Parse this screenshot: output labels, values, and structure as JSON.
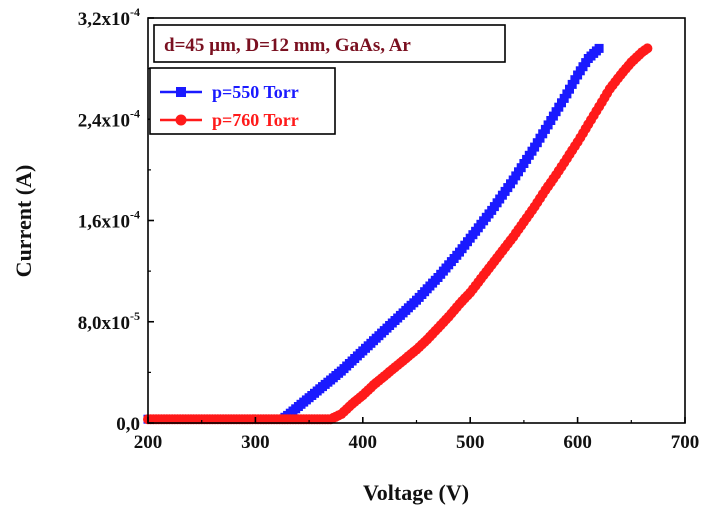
{
  "chart_data": {
    "type": "line",
    "annotation": "d=45 µm, D=12 mm, GaAs, Ar",
    "xlabel": "Voltage (V)",
    "ylabel": "Current (A)",
    "xlim": [
      200,
      700
    ],
    "ylim": [
      0,
      0.00032
    ],
    "x_ticks": [
      "200",
      "300",
      "400",
      "500",
      "600",
      "700"
    ],
    "y_ticks": [
      {
        "mantissa": "0,0",
        "exp": ""
      },
      {
        "mantissa": "8,0x10",
        "exp": "-5"
      },
      {
        "mantissa": "1,6x10",
        "exp": "-4"
      },
      {
        "mantissa": "2,4x10",
        "exp": "-4"
      },
      {
        "mantissa": "3,2x10",
        "exp": "-4"
      }
    ],
    "legend_position": "top-left",
    "grid": false,
    "series": [
      {
        "name": "p=550 Torr",
        "color": "#1a1aff",
        "marker": "square",
        "points": [
          [
            200,
            3e-06
          ],
          [
            260,
            3e-06
          ],
          [
            310,
            3e-06
          ],
          [
            325,
            3e-06
          ],
          [
            330,
            6e-06
          ],
          [
            340,
            1.3e-05
          ],
          [
            350,
            2e-05
          ],
          [
            360,
            2.7e-05
          ],
          [
            370,
            3.4e-05
          ],
          [
            380,
            4.1e-05
          ],
          [
            390,
            4.9e-05
          ],
          [
            400,
            5.7e-05
          ],
          [
            410,
            6.5e-05
          ],
          [
            420,
            7.3e-05
          ],
          [
            430,
            8.1e-05
          ],
          [
            440,
            8.9e-05
          ],
          [
            450,
            9.7e-05
          ],
          [
            460,
            0.000106
          ],
          [
            470,
            0.000115
          ],
          [
            480,
            0.000125
          ],
          [
            490,
            0.000135
          ],
          [
            500,
            0.000146
          ],
          [
            510,
            0.000157
          ],
          [
            520,
            0.000168
          ],
          [
            530,
            0.00018
          ],
          [
            540,
            0.000192
          ],
          [
            550,
            0.000205
          ],
          [
            560,
            0.000218
          ],
          [
            570,
            0.000232
          ],
          [
            580,
            0.000246
          ],
          [
            590,
            0.00026
          ],
          [
            600,
            0.000275
          ],
          [
            610,
            0.000288
          ],
          [
            620,
            0.000296
          ]
        ]
      },
      {
        "name": "p=760 Torr",
        "color": "#ff1a1a",
        "marker": "circle",
        "points": [
          [
            200,
            3e-06
          ],
          [
            260,
            3e-06
          ],
          [
            320,
            3e-06
          ],
          [
            370,
            3e-06
          ],
          [
            380,
            7e-06
          ],
          [
            390,
            1.5e-05
          ],
          [
            400,
            2.2e-05
          ],
          [
            410,
            3e-05
          ],
          [
            420,
            3.7e-05
          ],
          [
            430,
            4.4e-05
          ],
          [
            440,
            5.1e-05
          ],
          [
            450,
            5.8e-05
          ],
          [
            460,
            6.6e-05
          ],
          [
            470,
            7.5e-05
          ],
          [
            480,
            8.4e-05
          ],
          [
            490,
            9.4e-05
          ],
          [
            500,
            0.000103
          ],
          [
            510,
            0.000114
          ],
          [
            520,
            0.000125
          ],
          [
            530,
            0.000136
          ],
          [
            540,
            0.000147
          ],
          [
            550,
            0.000159
          ],
          [
            560,
            0.000171
          ],
          [
            570,
            0.000184
          ],
          [
            580,
            0.000196
          ],
          [
            590,
            0.000209
          ],
          [
            600,
            0.000222
          ],
          [
            610,
            0.000236
          ],
          [
            620,
            0.00025
          ],
          [
            630,
            0.000264
          ],
          [
            640,
            0.000275
          ],
          [
            650,
            0.000285
          ],
          [
            660,
            0.000293
          ],
          [
            665,
            0.000296
          ]
        ]
      }
    ]
  }
}
